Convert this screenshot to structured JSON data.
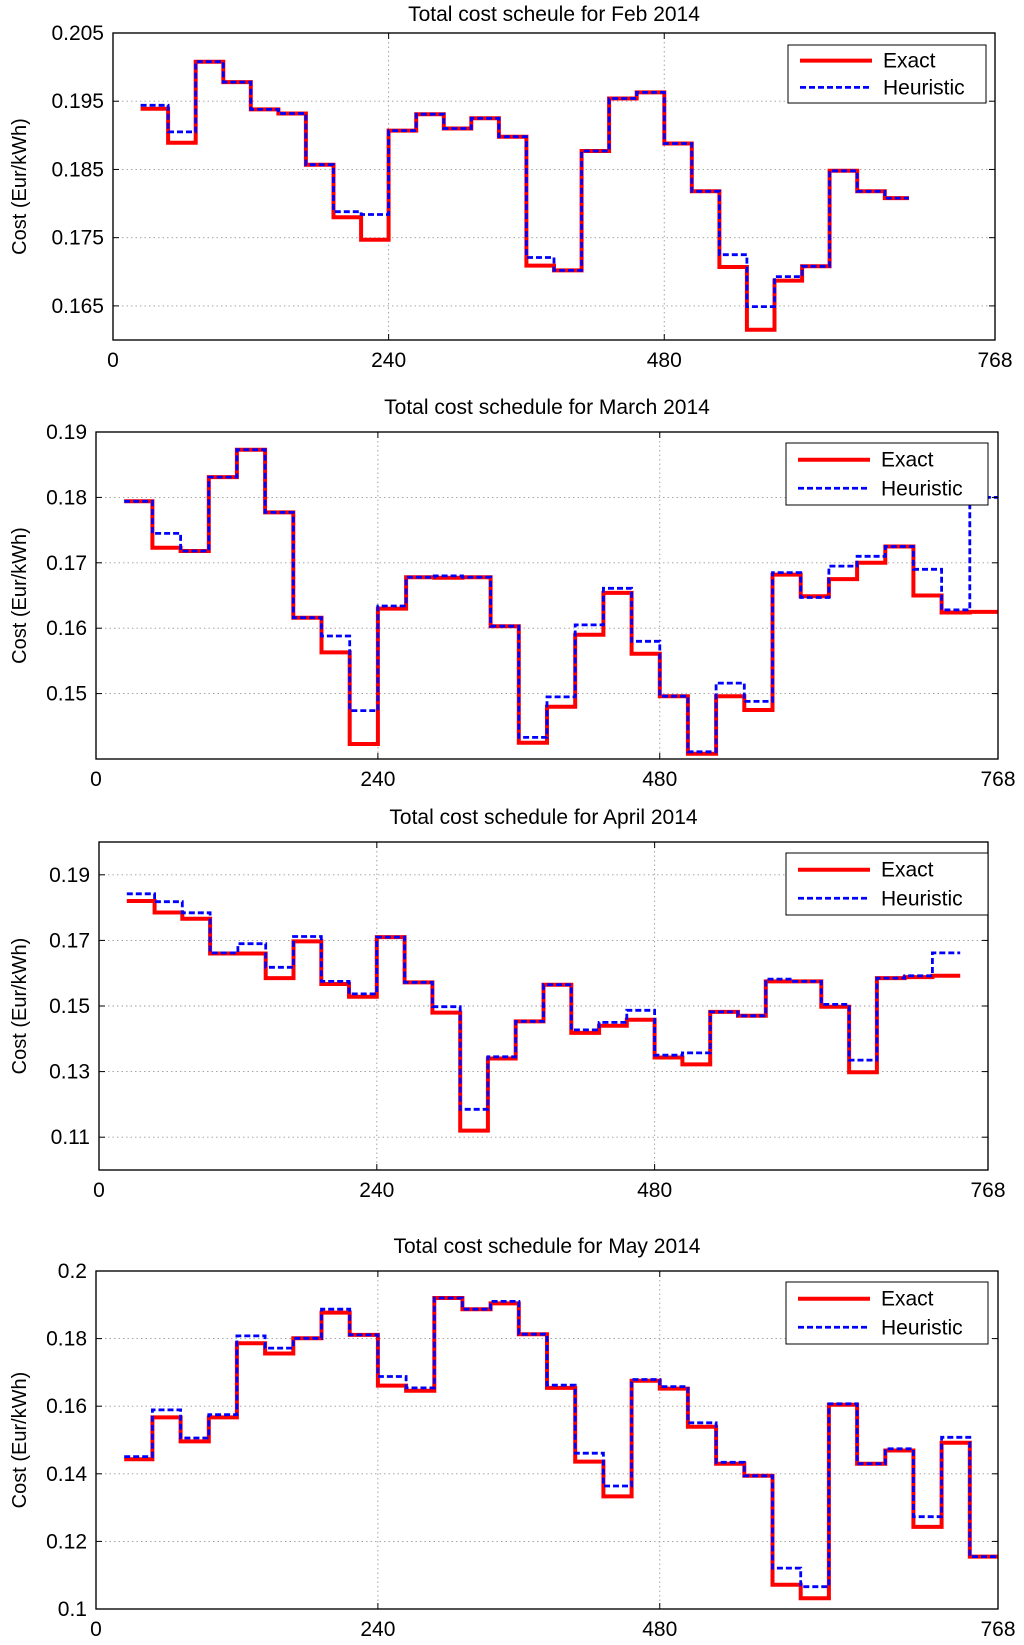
{
  "chart_data": [
    {
      "type": "line",
      "title": "Total cost scheule for Feb 2014",
      "xlabel": "",
      "ylabel": "Cost (Eur/kWh)",
      "xlim": [
        0,
        768
      ],
      "ylim": [
        0.16,
        0.205
      ],
      "xticks": [
        0,
        240,
        480,
        768
      ],
      "yticks": [
        0.165,
        0.175,
        0.185,
        0.195,
        0.205
      ],
      "ytick_labels": [
        "0.165",
        "0.175",
        "0.185",
        "0.195",
        "0.205"
      ],
      "grid": true,
      "legend_position": "top-right",
      "series": [
        {
          "name": "Exact",
          "color": "#ff0000",
          "style": "solid",
          "step_edges": [
            24,
            48,
            72,
            96,
            120,
            144,
            168,
            192,
            216,
            240,
            264,
            288,
            312,
            336,
            360,
            384,
            408,
            432,
            456,
            480,
            504,
            528,
            552,
            576,
            600,
            624,
            648,
            672,
            693
          ],
          "values": [
            0.1939,
            0.1889,
            0.2008,
            0.1978,
            0.1938,
            0.1932,
            0.1857,
            0.178,
            0.1747,
            0.1907,
            0.1931,
            0.191,
            0.1925,
            0.1898,
            0.1709,
            0.1702,
            0.1877,
            0.1954,
            0.1963,
            0.1888,
            0.1818,
            0.1707,
            0.1615,
            0.1687,
            0.1708,
            0.1848,
            0.1818,
            0.1808
          ]
        },
        {
          "name": "Heuristic",
          "color": "#0000ff",
          "style": "dashed",
          "step_edges": [
            24,
            48,
            72,
            96,
            120,
            144,
            168,
            192,
            216,
            240,
            264,
            288,
            312,
            336,
            360,
            384,
            408,
            432,
            456,
            480,
            504,
            528,
            552,
            576,
            600,
            624,
            648,
            672,
            693
          ],
          "values": [
            0.1944,
            0.1905,
            0.2008,
            0.1978,
            0.1938,
            0.1932,
            0.1857,
            0.1788,
            0.1784,
            0.1907,
            0.1931,
            0.191,
            0.1925,
            0.1898,
            0.1721,
            0.1702,
            0.1877,
            0.1954,
            0.1963,
            0.1888,
            0.1818,
            0.1725,
            0.1649,
            0.1693,
            0.1708,
            0.1848,
            0.1818,
            0.1808
          ]
        }
      ]
    },
    {
      "type": "line",
      "title": "Total cost schedule for March 2014",
      "xlabel": "",
      "ylabel": "Cost (Eur/kWh)",
      "xlim": [
        0,
        768
      ],
      "ylim": [
        0.14,
        0.19
      ],
      "xticks": [
        0,
        240,
        480,
        768
      ],
      "yticks": [
        0.15,
        0.16,
        0.17,
        0.18,
        0.19
      ],
      "ytick_labels": [
        "0.15",
        "0.16",
        "0.17",
        "0.18",
        "0.19"
      ],
      "grid": true,
      "legend_position": "top-right",
      "series": [
        {
          "name": "Exact",
          "color": "#ff0000",
          "style": "solid",
          "step_edges": [
            24,
            48,
            72,
            96,
            120,
            144,
            168,
            192,
            216,
            240,
            264,
            288,
            312,
            336,
            360,
            384,
            408,
            432,
            456,
            480,
            504,
            528,
            552,
            576,
            600,
            624,
            648,
            672,
            696,
            720,
            744,
            768
          ],
          "values": [
            0.1794,
            0.1723,
            0.1718,
            0.1831,
            0.1873,
            0.1777,
            0.1616,
            0.1563,
            0.1423,
            0.163,
            0.1678,
            0.1677,
            0.1678,
            0.1603,
            0.1425,
            0.148,
            0.159,
            0.1654,
            0.1561,
            0.1496,
            0.1408,
            0.1496,
            0.1475,
            0.1682,
            0.1649,
            0.1675,
            0.17,
            0.1725,
            0.165,
            0.1624,
            0.1625
          ]
        },
        {
          "name": "Heuristic",
          "color": "#0000ff",
          "style": "dashed",
          "step_edges": [
            24,
            48,
            72,
            96,
            120,
            144,
            168,
            192,
            216,
            240,
            264,
            288,
            312,
            336,
            360,
            384,
            408,
            432,
            456,
            480,
            504,
            528,
            552,
            576,
            600,
            624,
            648,
            672,
            696,
            720,
            744,
            768
          ],
          "values": [
            0.1794,
            0.1745,
            0.1718,
            0.1831,
            0.1873,
            0.1777,
            0.1616,
            0.1588,
            0.1474,
            0.1634,
            0.1678,
            0.168,
            0.1678,
            0.1603,
            0.1433,
            0.1495,
            0.1605,
            0.1661,
            0.158,
            0.1496,
            0.1411,
            0.1516,
            0.1488,
            0.1685,
            0.1647,
            0.1695,
            0.171,
            0.1725,
            0.169,
            0.1628,
            0.18
          ]
        }
      ]
    },
    {
      "type": "line",
      "title": "Total cost schedule for April 2014",
      "xlabel": "",
      "ylabel": "Cost (Eur/kWh)",
      "xlim": [
        0,
        768
      ],
      "ylim": [
        0.1,
        0.2
      ],
      "xticks": [
        0,
        240,
        480,
        768
      ],
      "yticks": [
        0.11,
        0.13,
        0.15,
        0.17,
        0.19
      ],
      "ytick_labels": [
        "0.11",
        "0.13",
        "0.15",
        "0.17",
        "0.19"
      ],
      "grid": true,
      "legend_position": "top-right",
      "series": [
        {
          "name": "Exact",
          "color": "#ff0000",
          "style": "solid",
          "step_edges": [
            24,
            48,
            72,
            96,
            120,
            144,
            168,
            192,
            216,
            240,
            264,
            288,
            312,
            336,
            360,
            384,
            408,
            432,
            456,
            480,
            504,
            528,
            552,
            576,
            600,
            624,
            648,
            672,
            696,
            720,
            744
          ],
          "values": [
            0.182,
            0.1785,
            0.1766,
            0.166,
            0.166,
            0.1585,
            0.1697,
            0.1567,
            0.1528,
            0.171,
            0.1572,
            0.148,
            0.112,
            0.134,
            0.1453,
            0.1565,
            0.1418,
            0.144,
            0.1458,
            0.1343,
            0.1322,
            0.1482,
            0.147,
            0.1575,
            0.1575,
            0.1498,
            0.1298,
            0.1585,
            0.1588,
            0.1592
          ]
        },
        {
          "name": "Heuristic",
          "color": "#0000ff",
          "style": "dashed",
          "step_edges": [
            24,
            48,
            72,
            96,
            120,
            144,
            168,
            192,
            216,
            240,
            264,
            288,
            312,
            336,
            360,
            384,
            408,
            432,
            456,
            480,
            504,
            528,
            552,
            576,
            600,
            624,
            648,
            672,
            696,
            720,
            744
          ],
          "values": [
            0.1842,
            0.1818,
            0.1784,
            0.1662,
            0.169,
            0.1618,
            0.1712,
            0.1575,
            0.1537,
            0.171,
            0.1572,
            0.1498,
            0.1185,
            0.1345,
            0.1453,
            0.1565,
            0.1427,
            0.145,
            0.1487,
            0.135,
            0.1357,
            0.1482,
            0.147,
            0.1582,
            0.1575,
            0.1505,
            0.1335,
            0.1585,
            0.1592,
            0.1662
          ]
        }
      ]
    },
    {
      "type": "line",
      "title": "Total cost schedule for May 2014",
      "xlabel": "",
      "ylabel": "Cost (Eur/kWh)",
      "xlim": [
        0,
        768
      ],
      "ylim": [
        0.1,
        0.2
      ],
      "xticks": [
        0,
        240,
        480,
        768
      ],
      "yticks": [
        0.1,
        0.12,
        0.14,
        0.16,
        0.18,
        0.2
      ],
      "ytick_labels": [
        "0.1",
        "0.12",
        "0.14",
        "0.16",
        "0.18",
        "0.2"
      ],
      "grid": true,
      "legend_position": "top-right",
      "series": [
        {
          "name": "Exact",
          "color": "#ff0000",
          "style": "solid",
          "step_edges": [
            24,
            48,
            72,
            96,
            120,
            144,
            168,
            192,
            216,
            240,
            264,
            288,
            312,
            336,
            360,
            384,
            408,
            432,
            456,
            480,
            504,
            528,
            552,
            576,
            600,
            624,
            648,
            672,
            696,
            720,
            744,
            768
          ],
          "values": [
            0.1443,
            0.1567,
            0.1496,
            0.1567,
            0.1786,
            0.1756,
            0.1801,
            0.1877,
            0.1811,
            0.1661,
            0.1646,
            0.192,
            0.1887,
            0.1904,
            0.1813,
            0.1654,
            0.1436,
            0.1333,
            0.1675,
            0.1652,
            0.1539,
            0.143,
            0.1394,
            0.1072,
            0.1032,
            0.1604,
            0.143,
            0.1469,
            0.1243,
            0.1492,
            0.1155
          ]
        },
        {
          "name": "Heuristic",
          "color": "#0000ff",
          "style": "dashed",
          "step_edges": [
            24,
            48,
            72,
            96,
            120,
            144,
            168,
            192,
            216,
            240,
            264,
            288,
            312,
            336,
            360,
            384,
            408,
            432,
            456,
            480,
            504,
            528,
            552,
            576,
            600,
            624,
            648,
            672,
            696,
            720,
            744,
            768
          ],
          "values": [
            0.1451,
            0.1589,
            0.1506,
            0.1575,
            0.1808,
            0.1772,
            0.1801,
            0.1887,
            0.1811,
            0.1688,
            0.1654,
            0.192,
            0.1887,
            0.191,
            0.1813,
            0.1662,
            0.1461,
            0.1364,
            0.1679,
            0.1658,
            0.1551,
            0.1434,
            0.1394,
            0.1121,
            0.1066,
            0.1607,
            0.143,
            0.1474,
            0.1273,
            0.1508,
            0.1155
          ]
        }
      ]
    }
  ]
}
